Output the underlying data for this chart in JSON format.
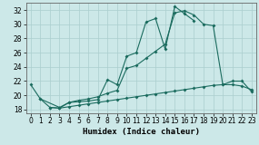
{
  "series1_x": [
    0,
    1,
    2,
    3,
    4,
    5,
    6,
    7,
    8,
    9,
    10,
    11,
    12,
    13,
    14,
    15,
    16,
    17
  ],
  "series1_y": [
    21.5,
    19.5,
    18.3,
    18.2,
    19.0,
    19.1,
    19.2,
    19.4,
    22.2,
    21.5,
    25.5,
    26.0,
    30.3,
    30.8,
    26.5,
    32.5,
    31.5,
    30.5
  ],
  "series2_x": [
    1,
    3,
    4,
    5,
    6,
    7,
    8,
    9,
    10,
    11,
    12,
    13,
    14,
    15,
    16,
    17,
    18,
    19,
    20,
    21,
    22,
    23
  ],
  "series2_y": [
    19.5,
    18.3,
    19.0,
    19.3,
    19.5,
    19.8,
    20.3,
    20.7,
    23.8,
    24.2,
    25.2,
    26.2,
    27.2,
    31.6,
    31.9,
    31.3,
    30.0,
    29.8,
    21.5,
    22.0,
    22.0,
    20.5
  ],
  "series3_x": [
    2,
    3,
    4,
    5,
    6,
    7,
    8,
    9,
    10,
    11,
    12,
    13,
    14,
    15,
    16,
    17,
    18,
    19,
    20,
    21,
    22,
    23
  ],
  "series3_y": [
    18.3,
    18.2,
    18.4,
    18.6,
    18.8,
    19.0,
    19.2,
    19.4,
    19.6,
    19.8,
    20.0,
    20.2,
    20.4,
    20.6,
    20.8,
    21.0,
    21.2,
    21.4,
    21.5,
    21.5,
    21.3,
    20.8
  ],
  "color": "#1a6b5e",
  "bg_color": "#cce8e8",
  "grid_color": "#aacece",
  "xlabel": "Humidex (Indice chaleur)",
  "xlim": [
    -0.5,
    23.5
  ],
  "ylim": [
    17.5,
    33.0
  ],
  "yticks": [
    18,
    20,
    22,
    24,
    26,
    28,
    30,
    32
  ],
  "xticks": [
    0,
    1,
    2,
    3,
    4,
    5,
    6,
    7,
    8,
    9,
    10,
    11,
    12,
    13,
    14,
    15,
    16,
    17,
    18,
    19,
    20,
    21,
    22,
    23
  ],
  "markersize": 2.0,
  "linewidth": 0.8,
  "xlabel_fontsize": 6.5,
  "tick_fontsize": 5.5
}
